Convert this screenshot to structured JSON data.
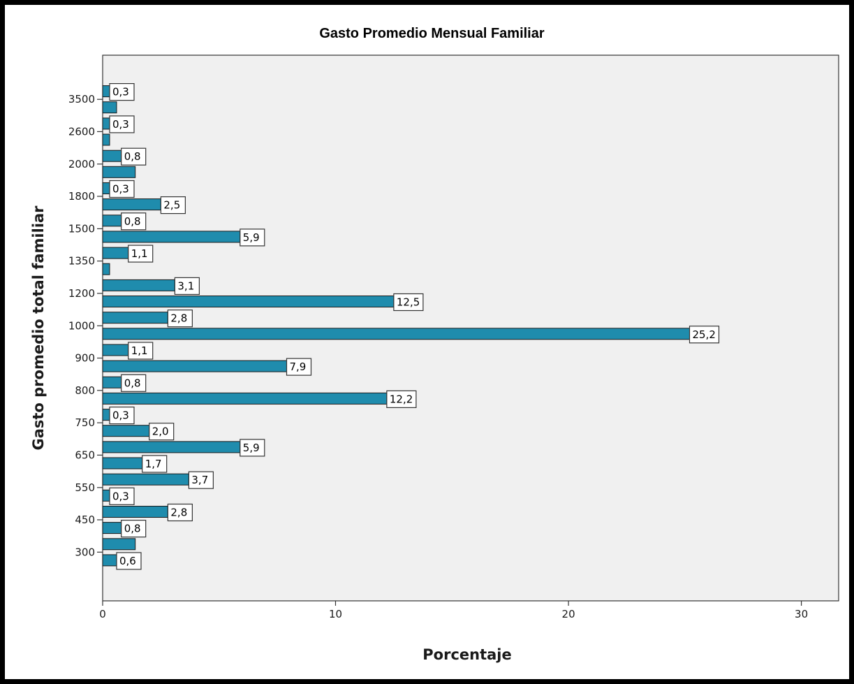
{
  "chart_data": {
    "type": "bar",
    "orientation": "horizontal",
    "title": "Gasto Promedio Mensual Familiar",
    "xlabel": "Porcentaje",
    "ylabel": "Gasto promedio total familiar",
    "xlim": [
      0,
      31.6
    ],
    "x_ticks": [
      "0",
      "10",
      "20",
      "30"
    ],
    "y_tick_labels": [
      "3500",
      "2600",
      "2000",
      "1800",
      "1500",
      "1350",
      "1200",
      "1000",
      "900",
      "800",
      "750",
      "650",
      "550",
      "450",
      "300"
    ],
    "grid": false,
    "legend": "none",
    "bar_color": "#1f8cad",
    "plot_background": "#f0f0f0",
    "bars": [
      {
        "value": 0.3,
        "label": "0,3"
      },
      {
        "value": 0.6,
        "label": ""
      },
      {
        "value": 0.3,
        "label": "0,3"
      },
      {
        "value": 0.3,
        "label": ""
      },
      {
        "value": 0.8,
        "label": "0,8"
      },
      {
        "value": 1.4,
        "label": ""
      },
      {
        "value": 0.3,
        "label": "0,3"
      },
      {
        "value": 2.5,
        "label": "2,5"
      },
      {
        "value": 0.8,
        "label": "0,8"
      },
      {
        "value": 5.9,
        "label": "5,9"
      },
      {
        "value": 1.1,
        "label": "1,1"
      },
      {
        "value": 0.3,
        "label": ""
      },
      {
        "value": 3.1,
        "label": "3,1"
      },
      {
        "value": 12.5,
        "label": "12,5"
      },
      {
        "value": 2.8,
        "label": "2,8"
      },
      {
        "value": 25.2,
        "label": "25,2"
      },
      {
        "value": 1.1,
        "label": "1,1"
      },
      {
        "value": 7.9,
        "label": "7,9"
      },
      {
        "value": 0.8,
        "label": "0,8"
      },
      {
        "value": 12.2,
        "label": "12,2"
      },
      {
        "value": 0.3,
        "label": "0,3"
      },
      {
        "value": 2.0,
        "label": "2,0"
      },
      {
        "value": 5.9,
        "label": "5,9"
      },
      {
        "value": 1.7,
        "label": "1,7"
      },
      {
        "value": 3.7,
        "label": "3,7"
      },
      {
        "value": 0.3,
        "label": "0,3"
      },
      {
        "value": 2.8,
        "label": "2,8"
      },
      {
        "value": 0.8,
        "label": "0,8"
      },
      {
        "value": 1.4,
        "label": ""
      },
      {
        "value": 0.6,
        "label": "0,6"
      }
    ]
  }
}
